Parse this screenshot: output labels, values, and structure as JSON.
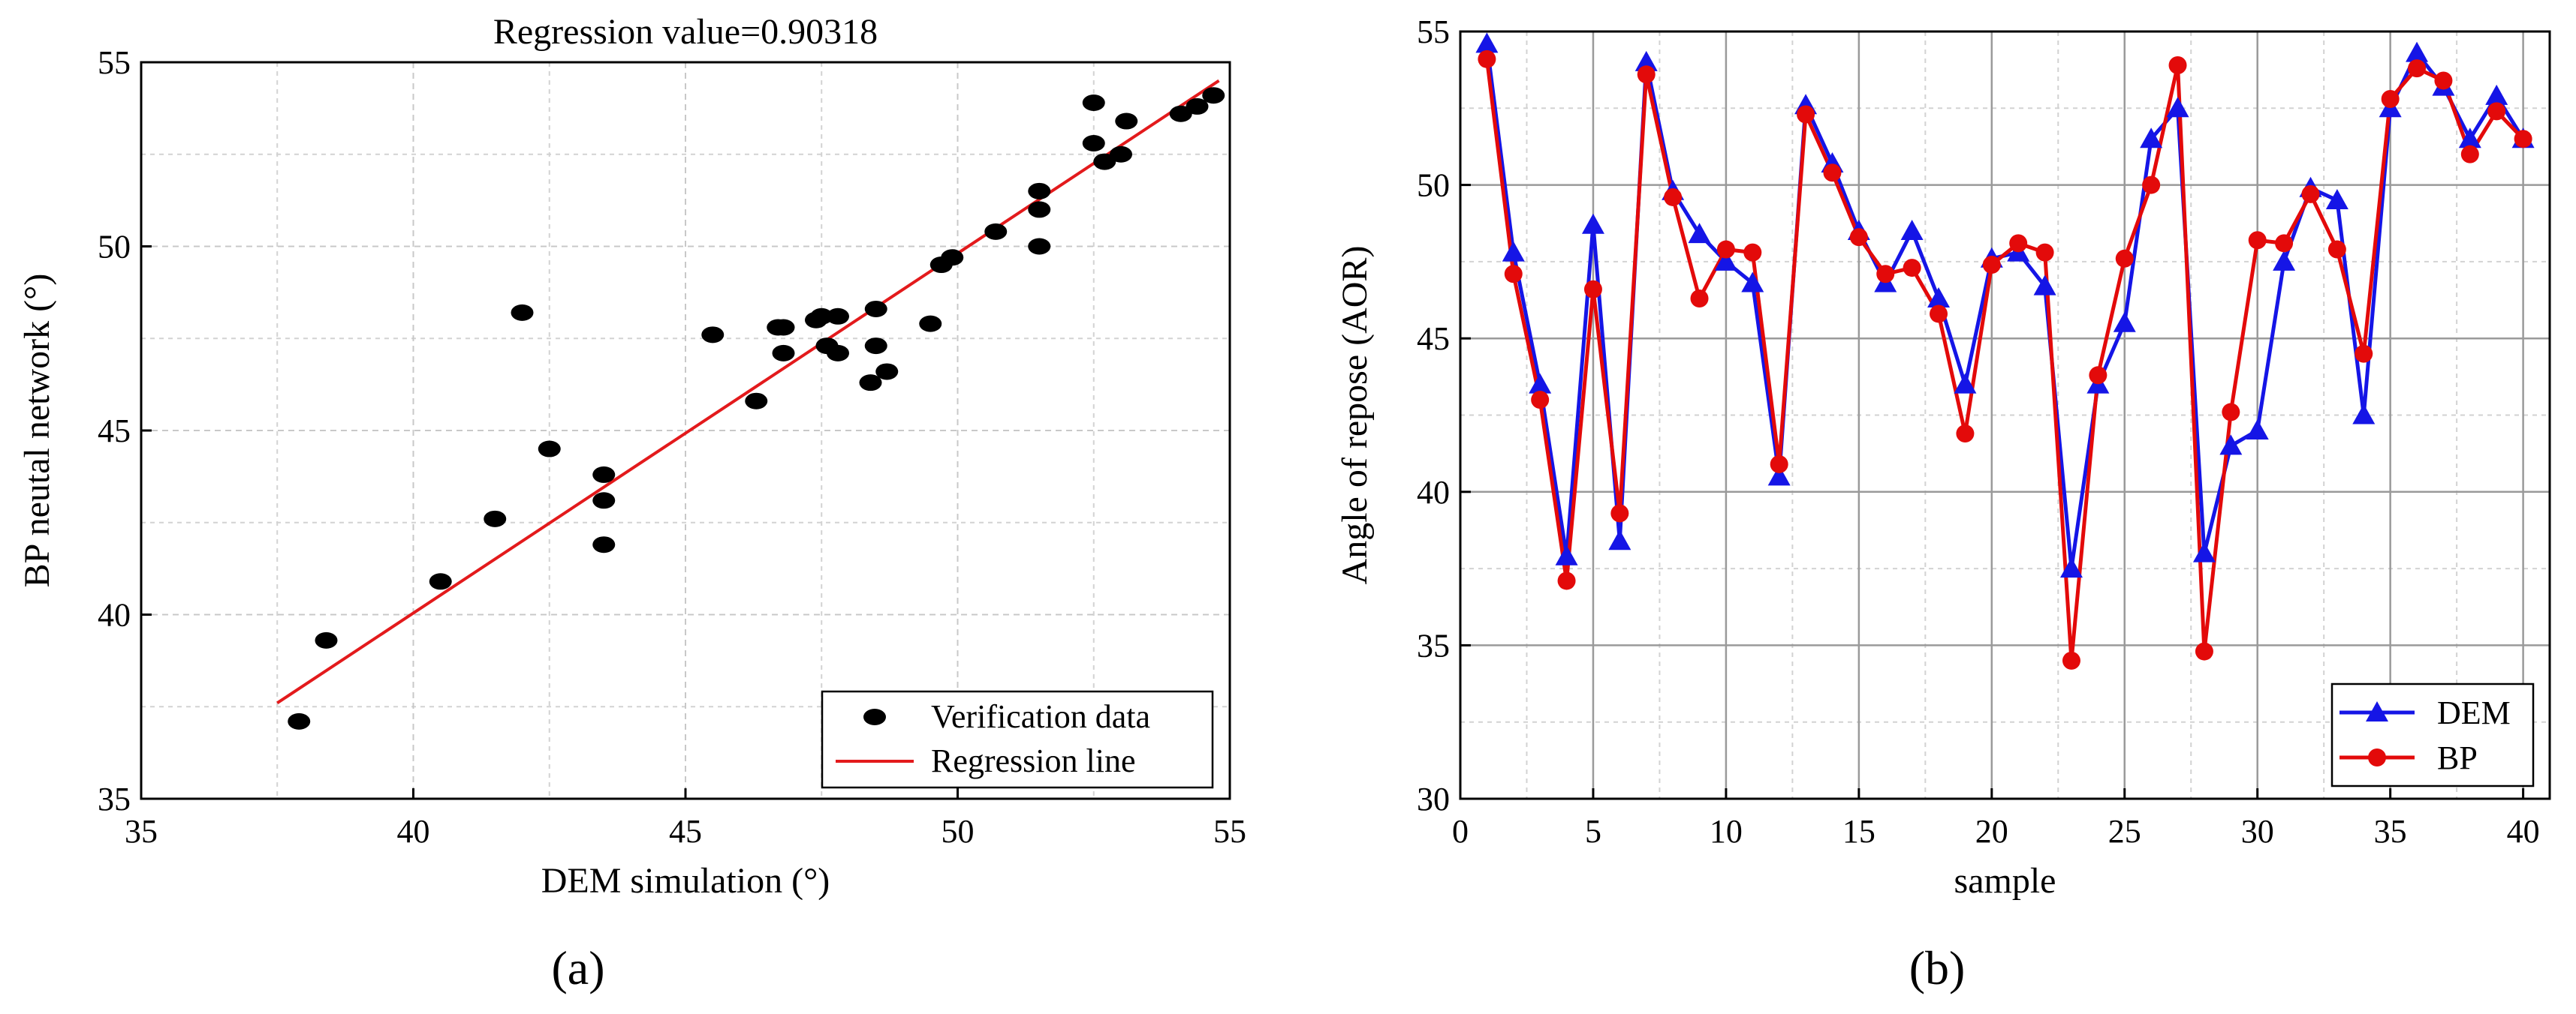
{
  "chart_data": [
    {
      "panel_label": "(a)",
      "type": "scatter",
      "title": "Regression value=0.90318",
      "xlabel": "DEM simulation (°)",
      "ylabel": "BP neutal network (°)",
      "xlim": [
        35,
        55
      ],
      "ylim": [
        35,
        55
      ],
      "xticks": [
        "35",
        "40",
        "45",
        "50",
        "55"
      ],
      "yticks": [
        "35",
        "40",
        "45",
        "50",
        "55"
      ],
      "grid": true,
      "legend_position": "bottom-right",
      "colors": {
        "points": "#000000",
        "line": "#e31a1c"
      },
      "series": [
        {
          "name": "Verification data",
          "kind": "scatter",
          "points": [
            [
              37.9,
              37.1
            ],
            [
              38.4,
              39.3
            ],
            [
              40.5,
              40.9
            ],
            [
              41.5,
              42.6
            ],
            [
              42.0,
              48.2
            ],
            [
              42.5,
              44.5
            ],
            [
              43.5,
              43.8
            ],
            [
              43.5,
              43.1
            ],
            [
              43.5,
              41.9
            ],
            [
              45.5,
              47.6
            ],
            [
              46.3,
              45.8
            ],
            [
              46.7,
              47.8
            ],
            [
              46.8,
              47.8
            ],
            [
              46.8,
              47.1
            ],
            [
              47.4,
              48.0
            ],
            [
              47.5,
              48.1
            ],
            [
              47.6,
              47.3
            ],
            [
              47.8,
              48.1
            ],
            [
              47.8,
              47.1
            ],
            [
              48.4,
              46.3
            ],
            [
              48.5,
              48.3
            ],
            [
              48.5,
              47.3
            ],
            [
              48.7,
              46.6
            ],
            [
              49.5,
              47.9
            ],
            [
              49.7,
              49.5
            ],
            [
              49.9,
              49.7
            ],
            [
              50.7,
              50.4
            ],
            [
              51.5,
              51.5
            ],
            [
              51.5,
              51.0
            ],
            [
              51.5,
              50.0
            ],
            [
              52.5,
              53.9
            ],
            [
              52.5,
              52.8
            ],
            [
              52.7,
              52.3
            ],
            [
              53.0,
              52.5
            ],
            [
              53.1,
              53.4
            ],
            [
              54.1,
              53.6
            ],
            [
              54.4,
              53.8
            ],
            [
              54.7,
              54.1
            ]
          ]
        },
        {
          "name": "Regression line",
          "kind": "line",
          "points": [
            [
              37.5,
              37.6
            ],
            [
              54.8,
              54.5
            ]
          ]
        }
      ]
    },
    {
      "panel_label": "(b)",
      "type": "line",
      "title": "",
      "xlabel": "sample",
      "ylabel": "Angle of repose (AOR)",
      "xlim": [
        0,
        41
      ],
      "ylim": [
        30,
        55
      ],
      "xticks": [
        "0",
        "5",
        "10",
        "15",
        "20",
        "25",
        "30",
        "35",
        "40"
      ],
      "yticks": [
        "30",
        "35",
        "40",
        "45",
        "50",
        "55"
      ],
      "grid": true,
      "legend_position": "bottom-right",
      "x": [
        1,
        2,
        3,
        4,
        5,
        6,
        7,
        8,
        9,
        10,
        11,
        12,
        13,
        14,
        15,
        16,
        17,
        18,
        19,
        20,
        21,
        22,
        23,
        24,
        25,
        26,
        27,
        28,
        29,
        30,
        31,
        32,
        33,
        34,
        35,
        36,
        37,
        38,
        39,
        40
      ],
      "series": [
        {
          "name": "DEM",
          "color": "#1515e6",
          "marker": "triangle",
          "values": [
            54.6,
            47.8,
            43.5,
            37.9,
            48.7,
            38.4,
            54.0,
            49.8,
            48.4,
            47.5,
            46.8,
            40.5,
            52.6,
            50.7,
            48.5,
            46.8,
            48.5,
            46.3,
            43.5,
            47.6,
            47.8,
            46.7,
            37.5,
            43.5,
            45.5,
            51.5,
            52.5,
            38.0,
            41.5,
            42.0,
            47.5,
            49.9,
            49.5,
            42.5,
            52.5,
            54.3,
            53.2,
            51.5,
            52.9,
            51.5
          ]
        },
        {
          "name": "BP",
          "color": "#e30a0a",
          "marker": "circle",
          "values": [
            54.1,
            47.1,
            43.0,
            37.1,
            46.6,
            39.3,
            53.6,
            49.6,
            46.3,
            47.9,
            47.8,
            40.9,
            52.3,
            50.4,
            48.3,
            47.1,
            47.3,
            45.8,
            41.9,
            47.4,
            48.1,
            47.8,
            34.5,
            43.8,
            47.6,
            50.0,
            53.9,
            34.8,
            42.6,
            48.2,
            48.1,
            49.7,
            47.9,
            44.5,
            52.8,
            53.8,
            53.4,
            51.0,
            52.4,
            51.5
          ]
        }
      ]
    }
  ]
}
